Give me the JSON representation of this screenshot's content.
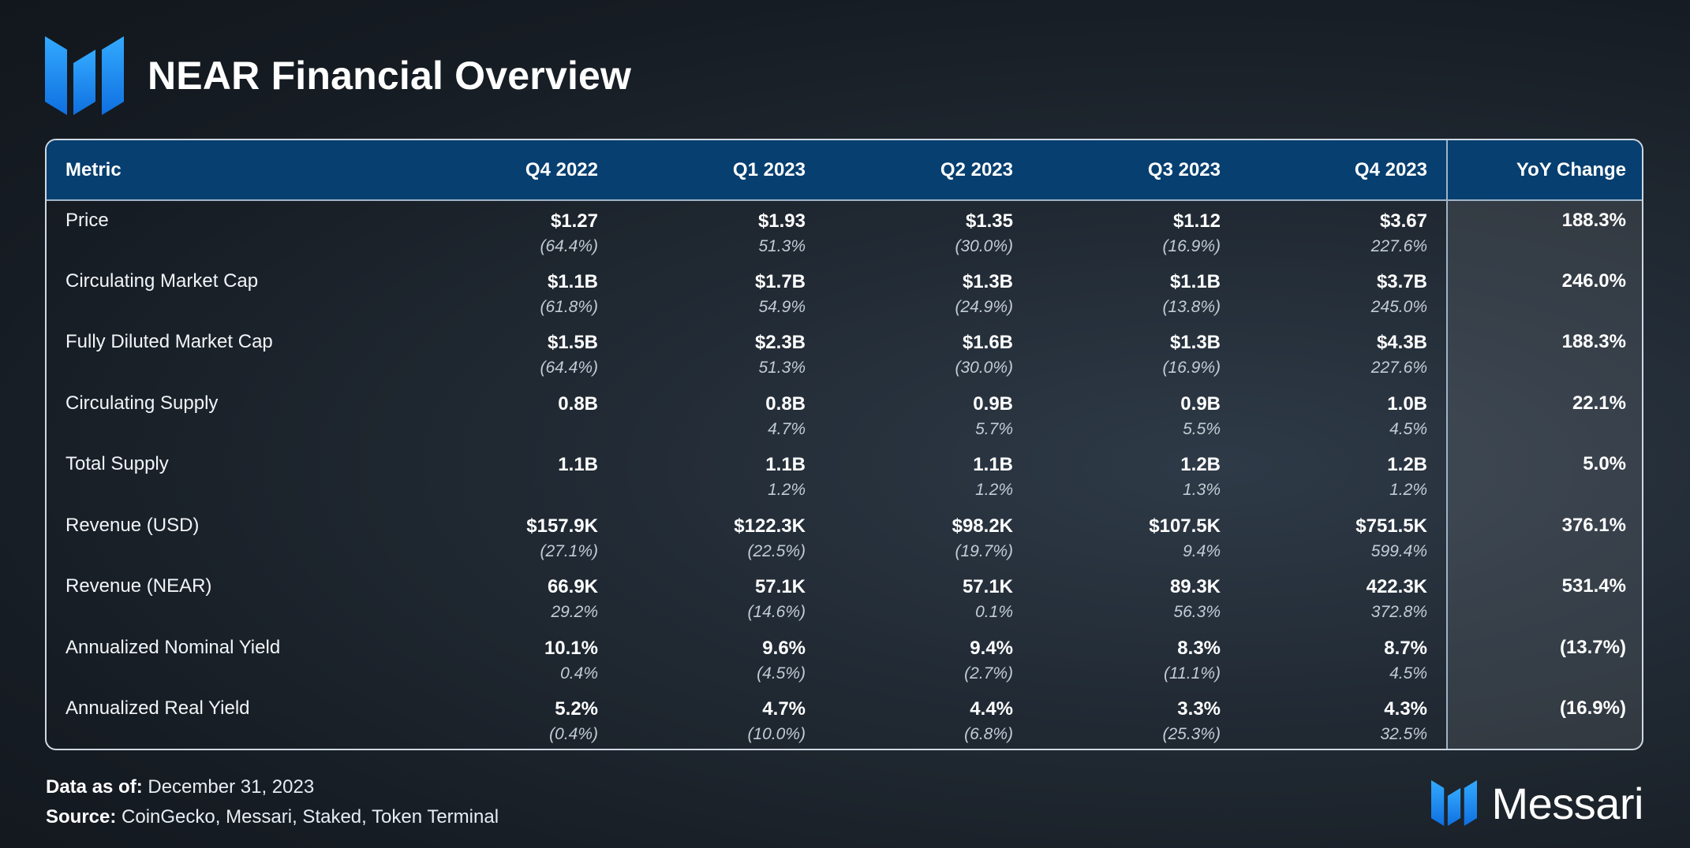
{
  "header": {
    "title": "NEAR Financial Overview"
  },
  "chart_data": {
    "type": "table",
    "title": "NEAR Financial Overview",
    "columns": [
      "Metric",
      "Q4 2022",
      "Q1 2023",
      "Q2 2023",
      "Q3 2023",
      "Q4 2023",
      "YoY Change"
    ],
    "rows": [
      {
        "metric": "Price",
        "values": [
          "$1.27",
          "$1.93",
          "$1.35",
          "$1.12",
          "$3.67"
        ],
        "changes": [
          "(64.4%)",
          "51.3%",
          "(30.0%)",
          "(16.9%)",
          "227.6%"
        ],
        "yoy": "188.3%"
      },
      {
        "metric": "Circulating Market Cap",
        "values": [
          "$1.1B",
          "$1.7B",
          "$1.3B",
          "$1.1B",
          "$3.7B"
        ],
        "changes": [
          "(61.8%)",
          "54.9%",
          "(24.9%)",
          "(13.8%)",
          "245.0%"
        ],
        "yoy": "246.0%"
      },
      {
        "metric": "Fully Diluted Market Cap",
        "values": [
          "$1.5B",
          "$2.3B",
          "$1.6B",
          "$1.3B",
          "$4.3B"
        ],
        "changes": [
          "(64.4%)",
          "51.3%",
          "(30.0%)",
          "(16.9%)",
          "227.6%"
        ],
        "yoy": "188.3%"
      },
      {
        "metric": "Circulating Supply",
        "values": [
          "0.8B",
          "0.8B",
          "0.9B",
          "0.9B",
          "1.0B"
        ],
        "changes": [
          "",
          "4.7%",
          "5.7%",
          "5.5%",
          "4.5%"
        ],
        "yoy": "22.1%"
      },
      {
        "metric": "Total Supply",
        "values": [
          "1.1B",
          "1.1B",
          "1.1B",
          "1.2B",
          "1.2B"
        ],
        "changes": [
          "",
          "1.2%",
          "1.2%",
          "1.3%",
          "1.2%"
        ],
        "yoy": "5.0%"
      },
      {
        "metric": "Revenue (USD)",
        "values": [
          "$157.9K",
          "$122.3K",
          "$98.2K",
          "$107.5K",
          "$751.5K"
        ],
        "changes": [
          "(27.1%)",
          "(22.5%)",
          "(19.7%)",
          "9.4%",
          "599.4%"
        ],
        "yoy": "376.1%"
      },
      {
        "metric": "Revenue (NEAR)",
        "values": [
          "66.9K",
          "57.1K",
          "57.1K",
          "89.3K",
          "422.3K"
        ],
        "changes": [
          "29.2%",
          "(14.6%)",
          "0.1%",
          "56.3%",
          "372.8%"
        ],
        "yoy": "531.4%"
      },
      {
        "metric": "Annualized Nominal Yield",
        "values": [
          "10.1%",
          "9.6%",
          "9.4%",
          "8.3%",
          "8.7%"
        ],
        "changes": [
          "0.4%",
          "(4.5%)",
          "(2.7%)",
          "(11.1%)",
          "4.5%"
        ],
        "yoy": "(13.7%)"
      },
      {
        "metric": "Annualized Real Yield",
        "values": [
          "5.2%",
          "4.7%",
          "4.4%",
          "3.3%",
          "4.3%"
        ],
        "changes": [
          "(0.4%)",
          "(10.0%)",
          "(6.8%)",
          "(25.3%)",
          "32.5%"
        ],
        "yoy": "(16.9%)"
      }
    ]
  },
  "footer": {
    "data_as_of_label": "Data as of:",
    "data_as_of_value": " December 31, 2023",
    "source_label": "Source:",
    "source_value": " CoinGecko, Messari, Staked, Token Terminal"
  },
  "brand": {
    "name": "Messari",
    "icon": "messari-logo-icon"
  },
  "colors": {
    "accent_blue": "#1a8dff",
    "header_row": "#063f70",
    "border": "#cfd8e2"
  }
}
